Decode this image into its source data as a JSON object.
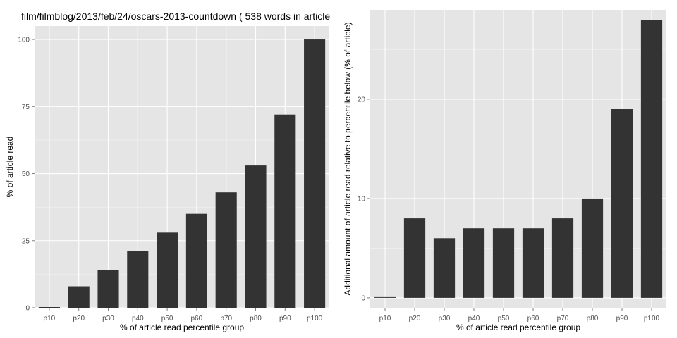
{
  "title": "film/filmblog/2013/feb/24/oscars-2013-countdown ( 538 words in article",
  "chart_data": [
    {
      "type": "bar",
      "categories": [
        "p10",
        "p20",
        "p30",
        "p40",
        "p50",
        "p60",
        "p70",
        "p80",
        "p90",
        "p100"
      ],
      "values": [
        0,
        8,
        14,
        21,
        28,
        35,
        43,
        53,
        72,
        100
      ],
      "xlabel": "% of article read percentile group",
      "ylabel": "% of article read",
      "ylim": [
        0,
        105
      ],
      "yticks": [
        0,
        25,
        50,
        75,
        100
      ],
      "grid": true
    },
    {
      "type": "bar",
      "categories": [
        "p10",
        "p20",
        "p30",
        "p40",
        "p50",
        "p60",
        "p70",
        "p80",
        "p90",
        "p100"
      ],
      "values": [
        0,
        8,
        6,
        7,
        7,
        7,
        8,
        10,
        19,
        28
      ],
      "xlabel": "% of article read percentile group",
      "ylabel": "Additional amount of article read relative to percentile below (% of article)",
      "ylim": [
        -1,
        29
      ],
      "yticks": [
        0,
        10,
        20
      ],
      "grid": true
    }
  ],
  "colors": {
    "panel": "#e5e5e5",
    "grid_major": "#ffffff",
    "grid_minor": "#f2f2f2",
    "bar": "#333333"
  }
}
